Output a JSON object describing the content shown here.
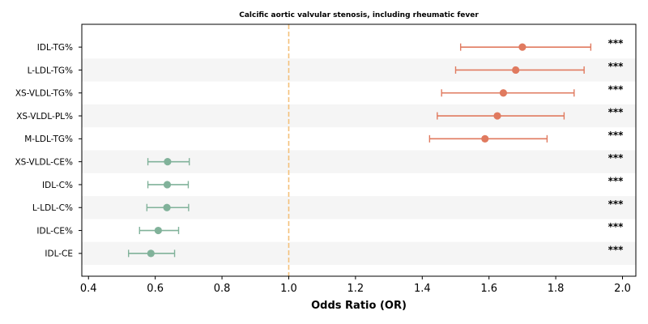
{
  "chart_data": {
    "type": "forest",
    "title": "Calcific aortic valvular stenosis, including rheumatic fever",
    "xlabel": "Odds Ratio (OR)",
    "ylabel": "",
    "xlim": [
      0.38,
      2.04
    ],
    "xticks": [
      "0.4",
      "0.6",
      "0.8",
      "1.0",
      "1.2",
      "1.4",
      "1.6",
      "1.8",
      "2.0"
    ],
    "reference_line": 1.0,
    "grid": false,
    "colors": {
      "risk": "#e07a5f",
      "protective": "#81b29a",
      "reference": "#f4c07a",
      "band": "#f5f5f5"
    },
    "rows": [
      {
        "label": "IDL-TG%",
        "or": 1.7,
        "lower": 1.515,
        "upper": 1.905,
        "sig": "***"
      },
      {
        "label": "L-LDL-TG%",
        "or": 1.68,
        "lower": 1.5,
        "upper": 1.885,
        "sig": "***"
      },
      {
        "label": "XS-VLDL-TG%",
        "or": 1.643,
        "lower": 1.458,
        "upper": 1.855,
        "sig": "***"
      },
      {
        "label": "XS-VLDL-PL%",
        "or": 1.625,
        "lower": 1.445,
        "upper": 1.825,
        "sig": "***"
      },
      {
        "label": "M-LDL-TG%",
        "or": 1.588,
        "lower": 1.422,
        "upper": 1.774,
        "sig": "***"
      },
      {
        "label": "XS-VLDL-CE%",
        "or": 0.637,
        "lower": 0.578,
        "upper": 0.702,
        "sig": "***"
      },
      {
        "label": "IDL-C%",
        "or": 0.636,
        "lower": 0.578,
        "upper": 0.699,
        "sig": "***"
      },
      {
        "label": "L-LDL-C%",
        "or": 0.635,
        "lower": 0.575,
        "upper": 0.7,
        "sig": "***"
      },
      {
        "label": "IDL-CE%",
        "or": 0.609,
        "lower": 0.553,
        "upper": 0.67,
        "sig": "***"
      },
      {
        "label": "IDL-CE",
        "or": 0.587,
        "lower": 0.52,
        "upper": 0.658,
        "sig": "***"
      }
    ]
  }
}
